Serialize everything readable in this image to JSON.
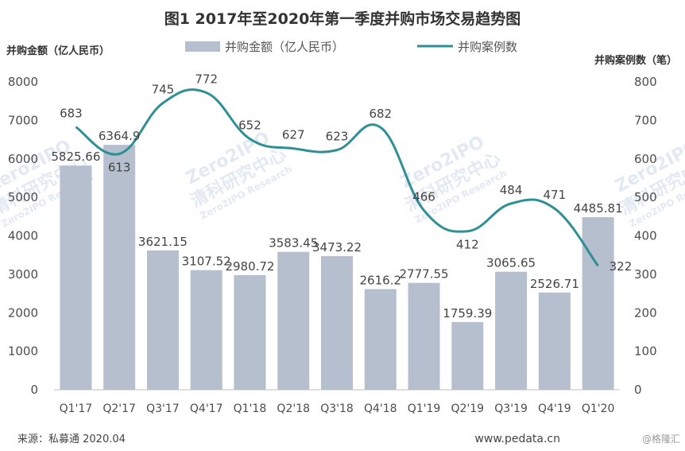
{
  "title": "图1 2017年至2020年第一季度并购市场交易趋势图",
  "source": "来源：私募通 2020.04",
  "site": "www.pedata.cn",
  "credit": "@格隆汇",
  "watermark": {
    "brand": "Zero2IPO",
    "line1": "清科研究中心",
    "line2": "Zero2IPO Research"
  },
  "colors": {
    "bar": "#b5bfcd",
    "line": "#2f8f96",
    "axis": "#bfbfbf",
    "watermark": "#dfe6f2"
  },
  "chart_data": {
    "type": "bar",
    "title": "图1 2017年至2020年第一季度并购市场交易趋势图",
    "categories": [
      "Q1'17",
      "Q2'17",
      "Q3'17",
      "Q4'17",
      "Q1'18",
      "Q2'18",
      "Q3'18",
      "Q4'18",
      "Q1'19",
      "Q2'19",
      "Q3'19",
      "Q4'19",
      "Q1'20"
    ],
    "series": [
      {
        "name": "并购金额（亿人民币）",
        "type": "bar",
        "axis": "left",
        "values": [
          5825.66,
          6364.9,
          3621.15,
          3107.52,
          2980.72,
          3583.45,
          3473.22,
          2616.2,
          2777.55,
          1759.39,
          3065.65,
          2526.71,
          4485.81
        ],
        "labels": [
          "5825.66",
          "6364.9",
          "3621.15",
          "3107.52",
          "2980.72",
          "3583.45",
          "3473.22",
          "2616.2",
          "2777.55",
          "1759.39",
          "3065.65",
          "2526.71",
          "4485.81"
        ]
      },
      {
        "name": "并购案例数",
        "type": "line",
        "axis": "right",
        "values": [
          683,
          613,
          745,
          772,
          652,
          627,
          623,
          682,
          466,
          412,
          484,
          471,
          322
        ],
        "labels": [
          "683",
          "613",
          "745",
          "772",
          "652",
          "627",
          "623",
          "682",
          "466",
          "412",
          "484",
          "471",
          "322"
        ]
      }
    ],
    "ylabel": "并购金额（亿人民币）",
    "y2label": "并购案例数（笔）",
    "ylim": [
      0,
      8000
    ],
    "y2lim": [
      0,
      800
    ],
    "yticks": [
      "0",
      "1000",
      "2000",
      "3000",
      "4000",
      "5000",
      "6000",
      "7000",
      "8000"
    ],
    "y2ticks": [
      "0",
      "100",
      "200",
      "300",
      "400",
      "500",
      "600",
      "700",
      "800"
    ],
    "grid": false,
    "legend": "top-center"
  }
}
